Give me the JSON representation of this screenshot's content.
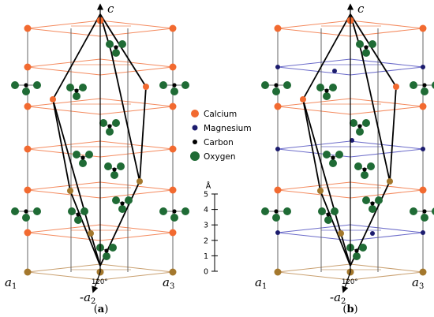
{
  "panels": [
    {
      "id": "a",
      "caption_letter": "a",
      "axis_c": "c",
      "axis_a1": "a",
      "axis_a1_sub": "1",
      "axis_a2": "-a",
      "axis_a2_sub": "2",
      "axis_a3": "a",
      "axis_a3_sub": "3",
      "angle_label": "120°",
      "layer_colors": [
        "#c9a070",
        "#f48a5e",
        "#f48a5e",
        "#f48a5e",
        "#f48a5e",
        "#f48a5e",
        "#f48a5e"
      ]
    },
    {
      "id": "b",
      "caption_letter": "b",
      "axis_c": "c",
      "axis_a1": "a",
      "axis_a1_sub": "1",
      "axis_a2": "-a",
      "axis_a2_sub": "2",
      "axis_a3": "a",
      "axis_a3_sub": "3",
      "angle_label": "120°",
      "layer_colors": [
        "#c9a070",
        "#6b6bc9",
        "#f48a5e",
        "#6b6bc9",
        "#f48a5e",
        "#6b6bc9",
        "#f48a5e"
      ]
    }
  ],
  "legend": [
    {
      "label": "Calcium",
      "color": "#f26a30",
      "icon": "calcium-atom-icon"
    },
    {
      "label": "Magnesium",
      "color": "#1c1c6e",
      "icon": "magnesium-atom-icon"
    },
    {
      "label": "Carbon",
      "color": "#000000",
      "icon": "carbon-atom-icon"
    },
    {
      "label": "Oxygen",
      "color": "#1f6b35",
      "icon": "oxygen-atom-icon"
    }
  ],
  "scale_bar": {
    "unit": "Å",
    "ticks": [
      "0",
      "1",
      "2",
      "3",
      "4",
      "5"
    ]
  },
  "colors": {
    "calcium": "#f26a30",
    "magnesium": "#1c1c6e",
    "carbon": "#000000",
    "oxygen": "#1f6b35",
    "base_atom": "#a4782d",
    "frame": "#555555"
  }
}
